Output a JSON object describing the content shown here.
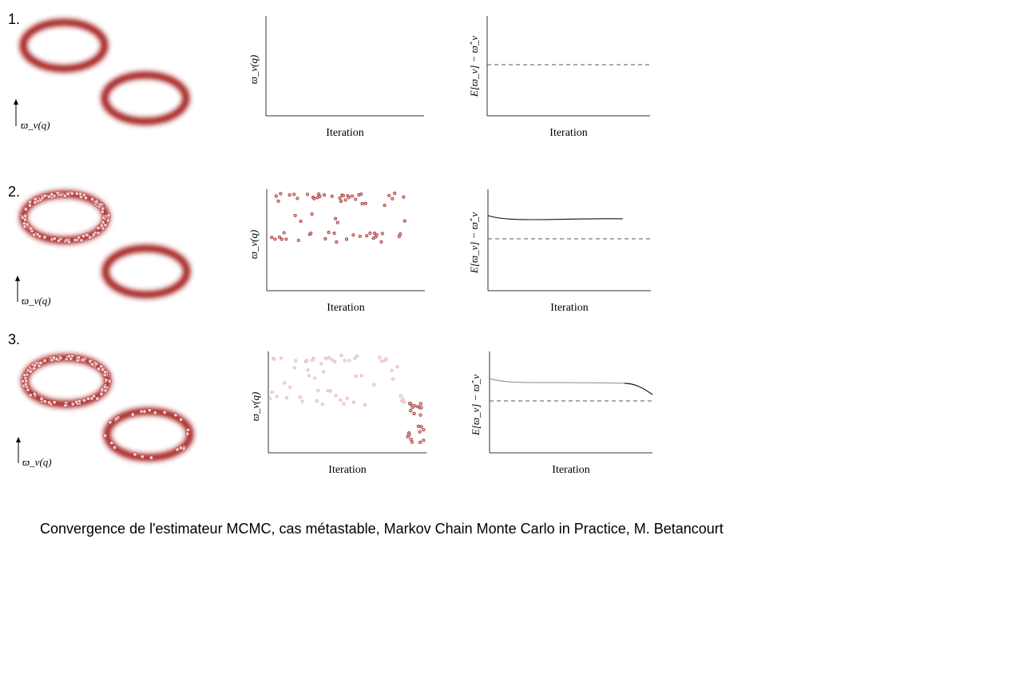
{
  "figure": {
    "caption": "Convergence de l'estimateur MCMC, cas métastable, Markov Chain Monte Carlo in Practice, M. Betancourt",
    "colors": {
      "ring": "#a31f1f",
      "sample_dark": "#c0393b",
      "sample_light": "#e9b8b8",
      "axis": "#333333"
    },
    "rows": [
      {
        "number": "1.",
        "mode_axis_label": "ϖ_v(q)",
        "trace": {
          "ylabel": "ϖ_v(q)",
          "xlabel": "Iteration",
          "phase": "none"
        },
        "error": {
          "ylabel": "E[ϖ_v] − ϖ̂_v",
          "xlabel": "Iteration",
          "phase": "none"
        }
      },
      {
        "number": "2.",
        "mode_axis_label": "ϖ_v(q)",
        "trace": {
          "ylabel": "ϖ_v(q)",
          "xlabel": "Iteration",
          "phase": "upper"
        },
        "error": {
          "ylabel": "E[ϖ_v] − ϖ̂_v",
          "xlabel": "Iteration",
          "phase": "flat"
        }
      },
      {
        "number": "3.",
        "mode_axis_label": "ϖ_v(q)",
        "trace": {
          "ylabel": "ϖ_v(q)",
          "xlabel": "Iteration",
          "phase": "upper-then-lower"
        },
        "error": {
          "ylabel": "E[ϖ_v] − ϖ̂_v",
          "xlabel": "Iteration",
          "phase": "flat-then-drop"
        }
      }
    ]
  }
}
